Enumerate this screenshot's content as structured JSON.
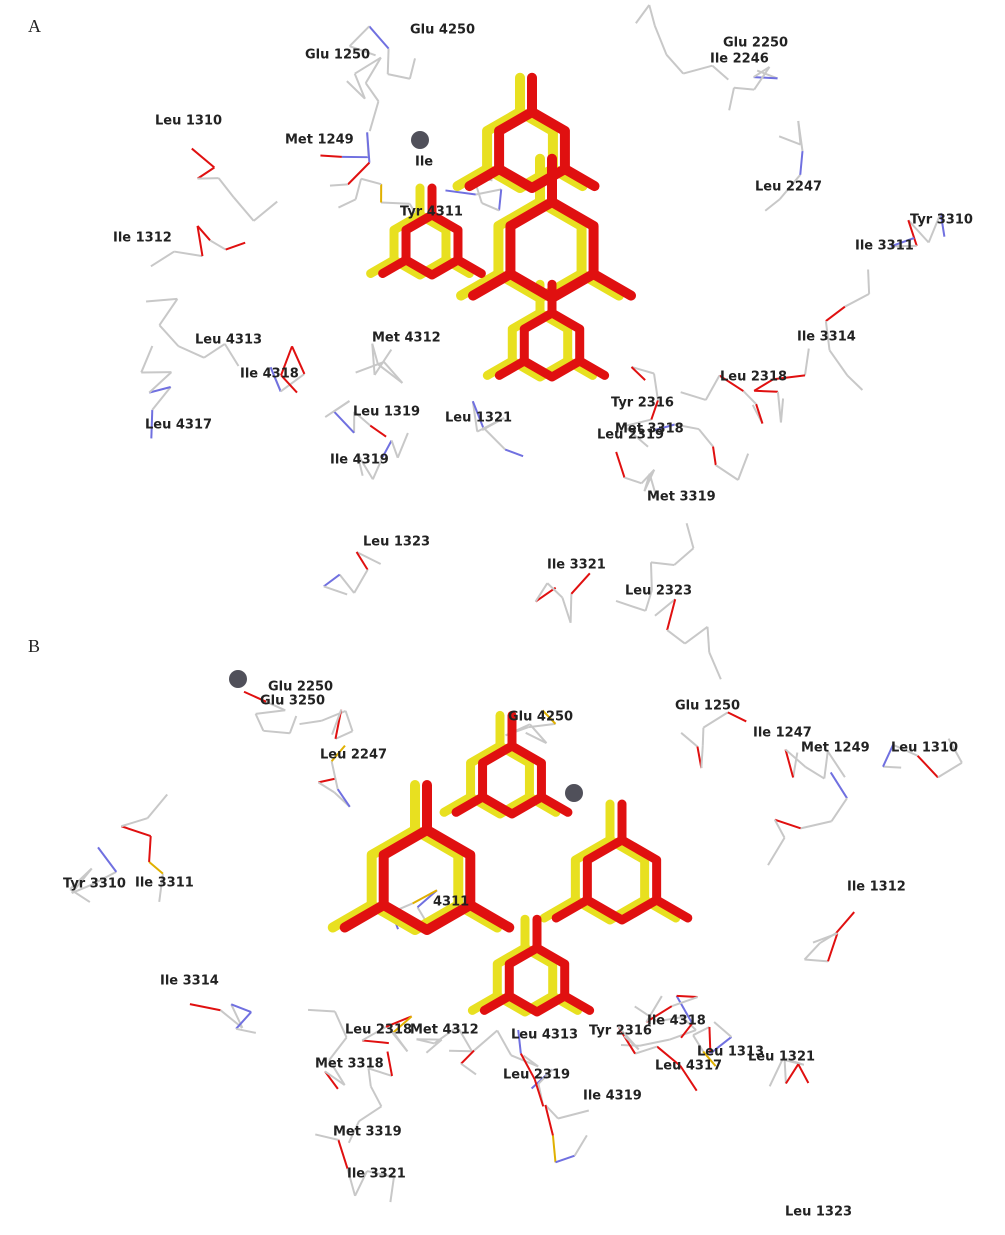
{
  "panels": [
    {
      "label": "A",
      "residues": [
        "Glu 4250",
        "Glu 1250",
        "Glu 2250",
        "Ile 2246",
        "Leu 1310",
        "Met 1249",
        "Ile",
        "Leu 2247",
        "Tyr 3310",
        "Tyr 4311",
        "Ile 1312",
        "Ile 3311",
        "Ile 3314",
        "Leu 4313",
        "Met 4312",
        "Ile 4318",
        "Leu 2318",
        "Leu 1319",
        "Leu 1321",
        "Tyr 2316",
        "Met 3318",
        "Leu 2319",
        "Leu 4317",
        "Ile 4319",
        "Met 3319",
        "Leu 1323",
        "Ile 3321",
        "Leu 2323"
      ]
    },
    {
      "label": "B",
      "residues": [
        "Glu 2250",
        "Glu 3250",
        "Glu 4250",
        "Glu 1250",
        "Ile 1247",
        "Met 1249",
        "Leu 1310",
        "Leu 2247",
        "Tyr 3310",
        "Ile 3311",
        "Ile 1312",
        "4311",
        "Ile 3314",
        "Leu 2318",
        "Met 4312",
        "Leu 4313",
        "Tyr 2316",
        "Ile 4318",
        "Leu 1313",
        "Leu 1321",
        "Leu 4317",
        "Met 3318",
        "Leu 2319",
        "Ile 4319",
        "Met 3319",
        "Ile 3321",
        "Leu 1323"
      ]
    }
  ]
}
